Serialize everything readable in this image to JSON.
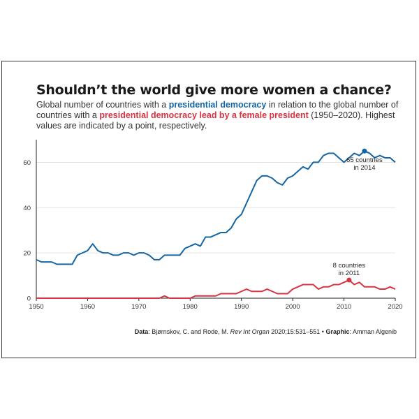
{
  "title": "Shouldn’t the world give more women a chance?",
  "subtitle": {
    "part1": "Global number of countries with a ",
    "hl1": "presidential democracy",
    "part2": " in relation to the global number of countries with a ",
    "hl2": "presidential democracy lead by a female president",
    "part3": " (1950–2020). Highest values are indicated by a point, respectively."
  },
  "source": {
    "data_label": "Data",
    "data_text": ": Bjørnskov, C. and Rode, M. ",
    "journal": "Rev Int Organ",
    "citation": " 2020;15:531–551 • ",
    "graphic_label": "Graphic",
    "graphic_text": ": Amman Algenib"
  },
  "colors": {
    "presidential": "#1565a3",
    "female": "#d63442"
  },
  "chart_data": {
    "type": "line",
    "x": [
      1950,
      1951,
      1952,
      1953,
      1954,
      1955,
      1956,
      1957,
      1958,
      1959,
      1960,
      1961,
      1962,
      1963,
      1964,
      1965,
      1966,
      1967,
      1968,
      1969,
      1970,
      1971,
      1972,
      1973,
      1974,
      1975,
      1976,
      1977,
      1978,
      1979,
      1980,
      1981,
      1982,
      1983,
      1984,
      1985,
      1986,
      1987,
      1988,
      1989,
      1990,
      1991,
      1992,
      1993,
      1994,
      1995,
      1996,
      1997,
      1998,
      1999,
      2000,
      2001,
      2002,
      2003,
      2004,
      2005,
      2006,
      2007,
      2008,
      2009,
      2010,
      2011,
      2012,
      2013,
      2014,
      2015,
      2016,
      2017,
      2018,
      2019,
      2020
    ],
    "series": [
      {
        "key": "presidential",
        "values": [
          17,
          16,
          16,
          16,
          15,
          15,
          15,
          15,
          19,
          20,
          21,
          24,
          21,
          20,
          20,
          19,
          19,
          20,
          20,
          19,
          20,
          20,
          19,
          17,
          17,
          19,
          19,
          19,
          19,
          22,
          23,
          24,
          23,
          27,
          27,
          28,
          29,
          29,
          31,
          35,
          37,
          42,
          47,
          52,
          54,
          54,
          53,
          51,
          50,
          53,
          54,
          56,
          58,
          57,
          60,
          60,
          63,
          64,
          64,
          62,
          60,
          62,
          64,
          63,
          65,
          64,
          62,
          63,
          62,
          62,
          60
        ]
      },
      {
        "key": "female",
        "values": [
          0,
          0,
          0,
          0,
          0,
          0,
          0,
          0,
          0,
          0,
          0,
          0,
          0,
          0,
          0,
          0,
          0,
          0,
          0,
          0,
          0,
          0,
          0,
          0,
          0,
          1,
          0,
          0,
          0,
          0,
          0,
          1,
          1,
          1,
          1,
          1,
          2,
          2,
          2,
          2,
          3,
          4,
          3,
          3,
          3,
          4,
          3,
          2,
          2,
          2,
          4,
          5,
          6,
          6,
          6,
          4,
          5,
          5,
          6,
          6,
          7,
          8,
          6,
          7,
          5,
          5,
          5,
          4,
          4,
          5,
          4
        ]
      }
    ],
    "xlim": [
      1950,
      2020
    ],
    "ylim": [
      0,
      70
    ],
    "xticks": [
      1950,
      1960,
      1970,
      1980,
      1990,
      2000,
      2010,
      2020
    ],
    "yticks": [
      0,
      20,
      40,
      60
    ],
    "grid": "horizontal",
    "annotations": [
      {
        "series": "presidential",
        "x": 2014,
        "y": 65,
        "line1": "65 countries",
        "line2": "in 2014",
        "position": "below"
      },
      {
        "series": "female",
        "x": 2011,
        "y": 8,
        "line1": "8 countries",
        "line2": "in 2011",
        "position": "above"
      }
    ]
  }
}
